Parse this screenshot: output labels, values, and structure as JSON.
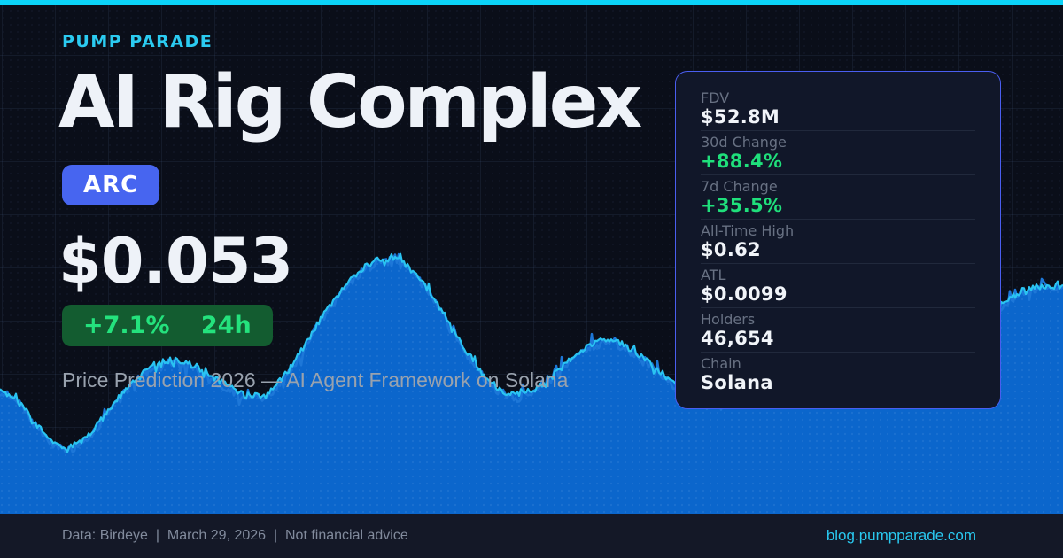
{
  "brand": "PUMP PARADE",
  "title": "AI Rig Complex",
  "ticker": "ARC",
  "price": "$0.053",
  "change_badge": {
    "change": "+7.1%",
    "period": "24h"
  },
  "subtitle": "Price Prediction 2026 — AI Agent Framework on Solana",
  "stats": {
    "rows": [
      {
        "label": "FDV",
        "value": "$52.8M",
        "highlight": false
      },
      {
        "label": "30d Change",
        "value": "+88.4%",
        "highlight": true
      },
      {
        "label": "7d Change",
        "value": "+35.5%",
        "highlight": true
      },
      {
        "label": "All-Time High",
        "value": "$0.62",
        "highlight": false
      },
      {
        "label": "ATL",
        "value": "$0.0099",
        "highlight": false
      },
      {
        "label": "Holders",
        "value": "46,654",
        "highlight": false
      },
      {
        "label": "Chain",
        "value": "Solana",
        "highlight": false
      }
    ]
  },
  "footer": {
    "left": "Data: Birdeye  |  March 29, 2026  |  Not financial advice",
    "link": "blog.pumpparade.com"
  },
  "colors": {
    "accent_cyan": "#0bd3f7",
    "background": "#0a0e19",
    "ticker_bg": "#4765f0",
    "change_bg": "#135c30",
    "change_text": "#24e27d",
    "panel_bg": "#111729",
    "panel_border": "#4a5ef0",
    "stat_green": "#1fdf7b",
    "footer_bg": "#141827",
    "link_cyan": "#29c9f0"
  },
  "chart_data": {
    "type": "area",
    "title": "ARC price sparkline (decorative, no axes)",
    "x_range": [
      0,
      1200
    ],
    "baseline_y": 580,
    "points": [
      [
        0,
        423
      ],
      [
        35,
        472
      ],
      [
        70,
        516
      ],
      [
        100,
        495
      ],
      [
        140,
        438
      ],
      [
        175,
        408
      ],
      [
        195,
        402
      ],
      [
        230,
        418
      ],
      [
        265,
        442
      ],
      [
        290,
        455
      ],
      [
        320,
        432
      ],
      [
        360,
        360
      ],
      [
        400,
        308
      ],
      [
        433,
        286
      ],
      [
        465,
        298
      ],
      [
        500,
        352
      ],
      [
        540,
        420
      ],
      [
        575,
        452
      ],
      [
        610,
        440
      ],
      [
        650,
        398
      ],
      [
        687,
        378
      ],
      [
        720,
        398
      ],
      [
        760,
        432
      ],
      [
        800,
        464
      ],
      [
        830,
        452
      ],
      [
        880,
        440
      ],
      [
        940,
        430
      ],
      [
        1000,
        420
      ],
      [
        1060,
        398
      ],
      [
        1100,
        368
      ],
      [
        1140,
        335
      ],
      [
        1172,
        318
      ],
      [
        1200,
        328
      ]
    ],
    "noise": {
      "fine": 7,
      "spike": 22,
      "seed": 1337,
      "step": 2
    },
    "colors": {
      "fill": "#0b66cc",
      "fill_dot": "rgba(255,255,255,0.07)",
      "stroke": "#2ac4f2",
      "stroke_shadow": "#1d77d8"
    },
    "grid": "60px square grid, faint blue",
    "legend": "none",
    "axes": "none"
  }
}
